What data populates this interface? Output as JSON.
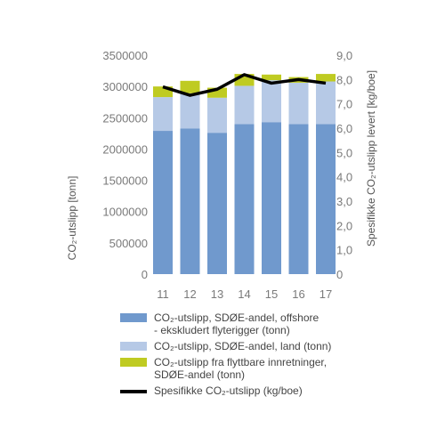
{
  "chart_data": {
    "type": "bar",
    "stacked": true,
    "categories": [
      "11",
      "12",
      "13",
      "14",
      "15",
      "16",
      "17"
    ],
    "series": [
      {
        "name": "CO₂-utslipp, SDØE-andel, offshore\n- ekskludert flyterigger (tonn)",
        "color": "#7099cd",
        "axis": "left",
        "values": [
          2290000,
          2330000,
          2260000,
          2400000,
          2430000,
          2400000,
          2400000
        ]
      },
      {
        "name": "CO₂-utslipp, SDØE-andel, land (tonn)",
        "color": "#b6c9e6",
        "axis": "left",
        "values": [
          540000,
          560000,
          560000,
          610000,
          670000,
          660000,
          680000
        ]
      },
      {
        "name": "CO₂-utslipp fra flyttbare innretninger,\nSDØE-andel (tonn)",
        "color": "#bfcb22",
        "axis": "left",
        "values": [
          170000,
          200000,
          160000,
          190000,
          90000,
          90000,
          120000
        ]
      },
      {
        "name": "Spesifikke CO₂-utslipp (kg/boe)",
        "color": "#000000",
        "type": "line",
        "axis": "right",
        "values": [
          7.7,
          7.35,
          7.6,
          8.2,
          7.85,
          8.0,
          7.85
        ]
      }
    ],
    "ylabel": "CO₂-utslipp [tonn]",
    "y2label": "Spesifikke CO₂-utslipp levert [kg/boe]",
    "ylim": [
      0,
      3500000
    ],
    "y2lim": [
      0,
      9
    ],
    "yticks": [
      "0",
      "500000",
      "1000000",
      "1500000",
      "2000000",
      "2500000",
      "3000000",
      "3500000"
    ],
    "y2ticks": [
      "0",
      "1,0",
      "2,0",
      "3,0",
      "4,0",
      "5,0",
      "6,0",
      "7,0",
      "8,0",
      "9,0"
    ],
    "grid": false,
    "legend": "bottom"
  }
}
